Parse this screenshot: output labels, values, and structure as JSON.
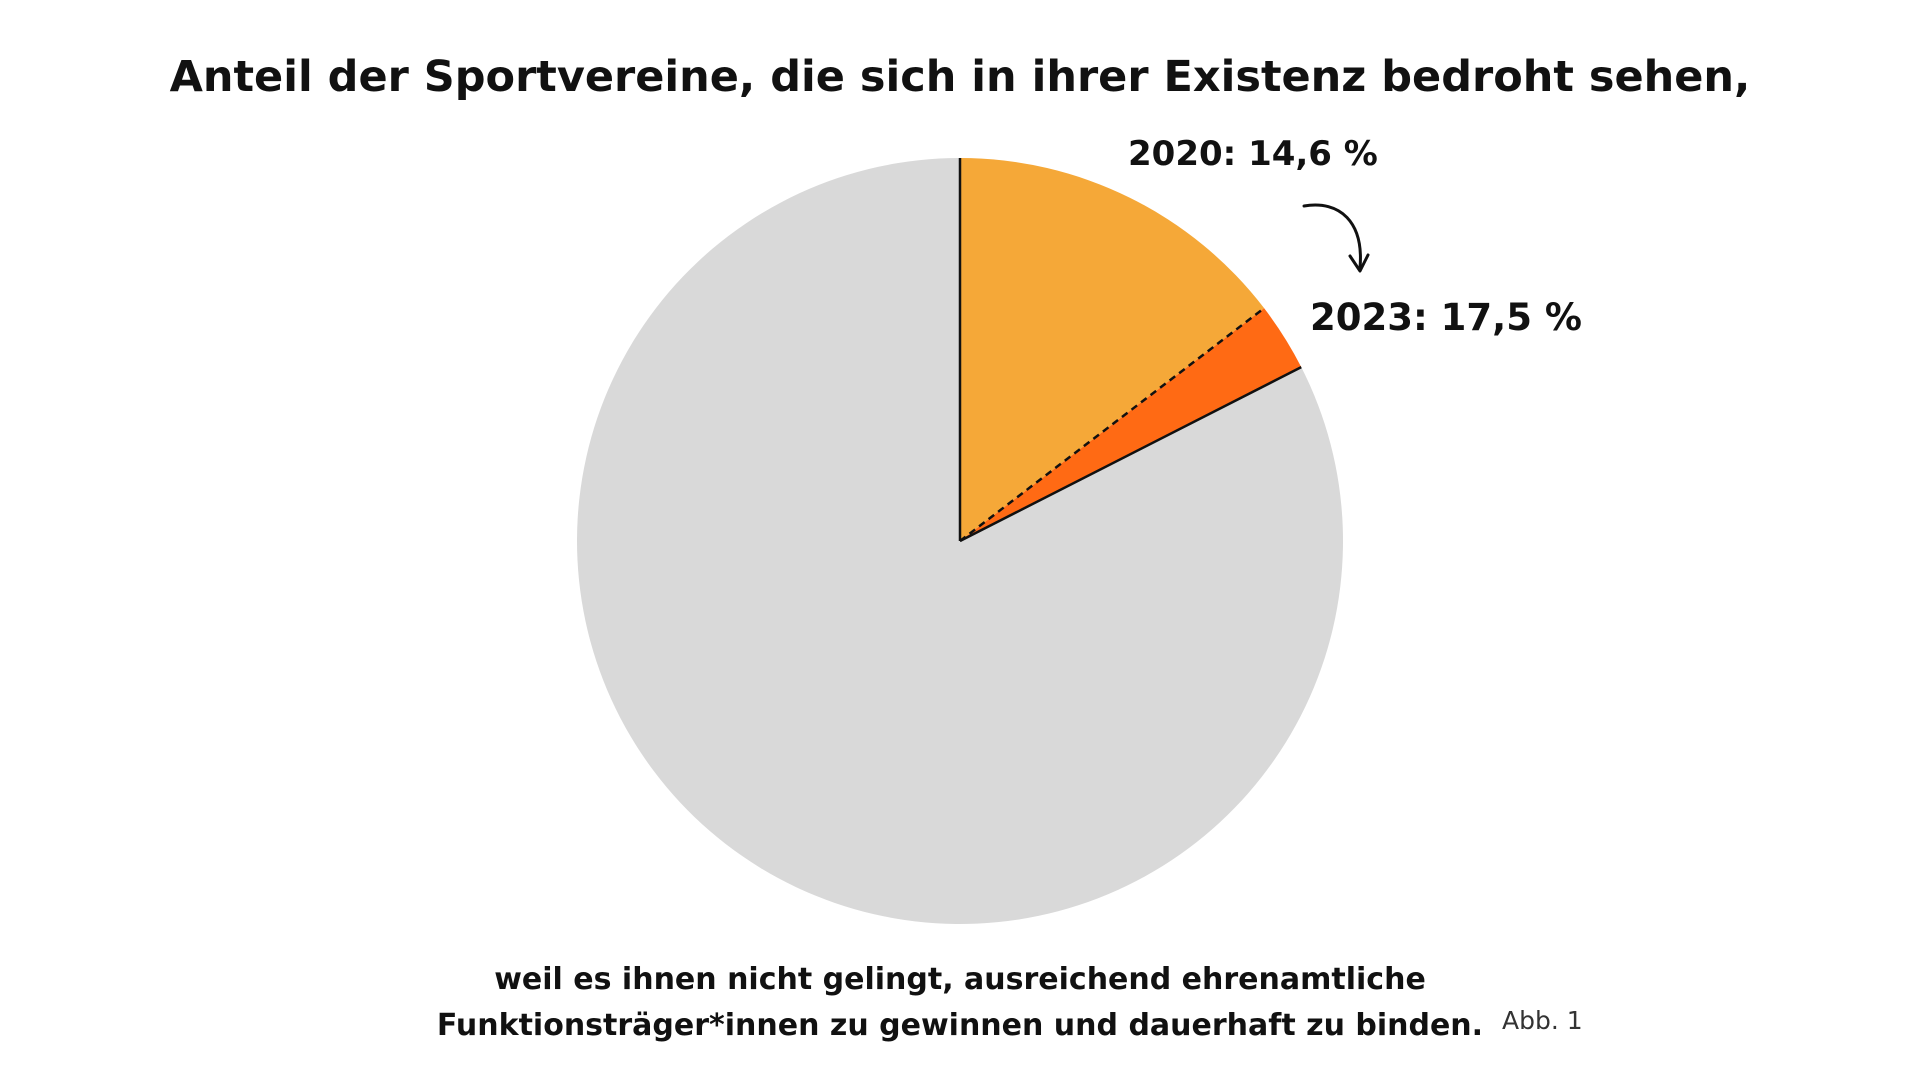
{
  "chart_data": {
    "type": "pie",
    "title": "Anteil der Sportvereine, die sich in ihrer Existenz bedroht sehen,",
    "caption_lines": [
      "weil es ihnen nicht gelingt, ausreichend ehrenamtliche",
      "Funktionsträger*innen zu gewinnen und dauerhaft zu binden."
    ],
    "figure_label": "Abb. 1",
    "unit": "%",
    "labels": {
      "y2020": "2020: 14,6 %",
      "y2023": "2023: 17,5 %"
    },
    "values": {
      "y2020": 14.6,
      "y2023": 17.5
    },
    "colors": {
      "y2020": "#F5A838",
      "increase": "#FF6A14",
      "remainder": "#D9D9D9"
    }
  }
}
